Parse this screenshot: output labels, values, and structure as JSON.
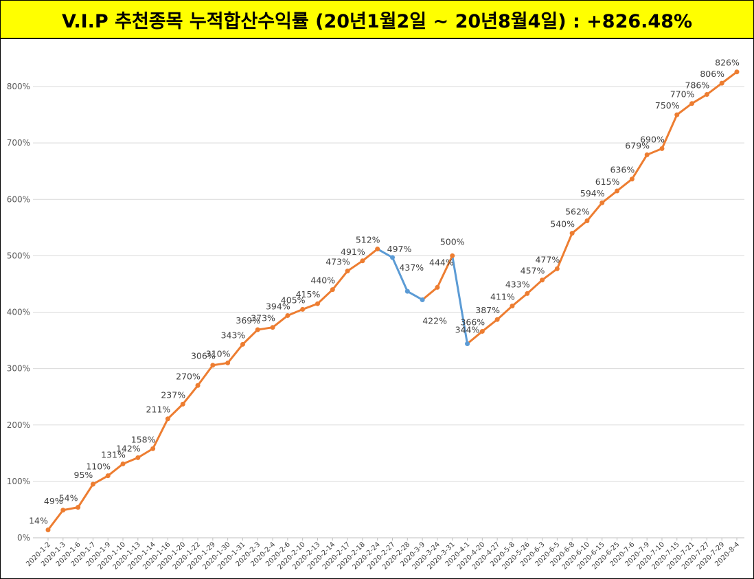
{
  "header": {
    "title": "V.I.P 추천종목 누적합산수익률 (20년1월2일 ~ 20년8월4일) : +826.48%"
  },
  "colors": {
    "title_background": "#ffff00",
    "series_rising": "#ed7d31",
    "series_falling": "#5b9bd5",
    "gridline": "#d9d9d9"
  },
  "chart_data": {
    "type": "line",
    "title": "V.I.P 추천종목 누적합산수익률 (20년1월2일 ~ 20년8월4일) : +826.48%",
    "xlabel": "",
    "ylabel": "",
    "ylim": [
      0,
      850
    ],
    "y_ticks": [
      0,
      100,
      200,
      300,
      400,
      500,
      600,
      700,
      800
    ],
    "y_tick_labels": [
      "0%",
      "100%",
      "200%",
      "300%",
      "400%",
      "500%",
      "600%",
      "700%",
      "800%"
    ],
    "grid": true,
    "legend": "none",
    "categories": [
      "2020-1-2",
      "2020-1-3",
      "2020-1-6",
      "2020-1-7",
      "2020-1-9",
      "2020-1-10",
      "2020-1-13",
      "2020-1-14",
      "2020-1-16",
      "2020-1-20",
      "2020-1-22",
      "2020-1-29",
      "2020-1-30",
      "2020-1-31",
      "2020-2-3",
      "2020-2-4",
      "2020-2-6",
      "2020-2-10",
      "2020-2-13",
      "2020-2-14",
      "2020-2-17",
      "2020-2-18",
      "2020-2-24",
      "2020-2-27",
      "2020-2-28",
      "2020-3-9",
      "2020-3-24",
      "2020-3-31",
      "2020-4-1",
      "2020-4-20",
      "2020-4-27",
      "2020-5-8",
      "2020-5-26",
      "2020-6-3",
      "2020-6-5",
      "2020-6-8",
      "2020-6-10",
      "2020-6-15",
      "2020-6-25",
      "2020-7-6",
      "2020-7-9",
      "2020-7-10",
      "2020-7-15",
      "2020-7-21",
      "2020-7-27",
      "2020-7-29",
      "2020-8-4"
    ],
    "values": [
      14,
      49,
      54,
      95,
      110,
      131,
      142,
      158,
      211,
      237,
      270,
      306,
      310,
      343,
      369,
      373,
      394,
      405,
      415,
      440,
      473,
      491,
      512,
      497,
      437,
      422,
      444,
      500,
      344,
      366,
      387,
      411,
      433,
      457,
      477,
      540,
      562,
      594,
      615,
      636,
      679,
      690,
      750,
      770,
      786,
      806,
      826
    ],
    "data_labels": [
      "14%",
      "49%",
      "54%",
      "95%",
      "110%",
      "131%",
      "142%",
      "158%",
      "211%",
      "237%",
      "270%",
      "306%",
      "310%",
      "343%",
      "369%",
      "373%",
      "394%",
      "405%",
      "415%",
      "440%",
      "473%",
      "491%",
      "512%",
      "497%",
      "437%",
      "422%",
      "444%",
      "500%",
      "344%",
      "366%",
      "387%",
      "411%",
      "433%",
      "457%",
      "477%",
      "540%",
      "562%",
      "594%",
      "615%",
      "636%",
      "679%",
      "690%",
      "750%",
      "770%",
      "786%",
      "806%",
      "826%"
    ]
  }
}
